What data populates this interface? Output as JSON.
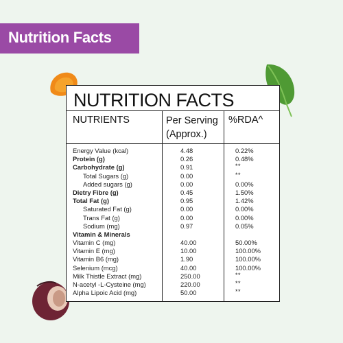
{
  "banner": {
    "title": "Nutrition Facts"
  },
  "panel": {
    "title": "NUTRITION FACTS",
    "headers": {
      "nutrients": "NUTRIENTS",
      "per_serving": "Per Serving (Approx.)",
      "rda": "%RDA^"
    }
  },
  "rows": [
    {
      "name": "Energy Value (kcal)",
      "serving": "4.48",
      "rda": "0.22%",
      "bold": false,
      "indent": false
    },
    {
      "name": "Protein (g)",
      "serving": "0.26",
      "rda": "0.48%",
      "bold": true,
      "indent": false
    },
    {
      "name": "Carbohydrate (g)",
      "serving": "0.91",
      "rda": "**",
      "bold": true,
      "indent": false
    },
    {
      "name": "Total Sugars (g)",
      "serving": "0.00",
      "rda": "**",
      "bold": false,
      "indent": true
    },
    {
      "name": "Added sugars (g)",
      "serving": "0.00",
      "rda": "0.00%",
      "bold": false,
      "indent": true
    },
    {
      "name": "Dietry Fibre (g)",
      "serving": "0.45",
      "rda": "1.50%",
      "bold": true,
      "indent": false
    },
    {
      "name": "Total Fat (g)",
      "serving": "0.95",
      "rda": "1.42%",
      "bold": true,
      "indent": false
    },
    {
      "name": "Saturated Fat (g)",
      "serving": "0.00",
      "rda": "0.00%",
      "bold": false,
      "indent": true
    },
    {
      "name": "Trans Fat (g)",
      "serving": "0.00",
      "rda": "0.00%",
      "bold": false,
      "indent": true
    },
    {
      "name": "Sodium (mg)",
      "serving": "0.97",
      "rda": "0.05%",
      "bold": false,
      "indent": true
    },
    {
      "name": "Vitamin & Minerals",
      "serving": "",
      "rda": "",
      "bold": true,
      "indent": false
    },
    {
      "name": "Vitamin C (mg)",
      "serving": "40.00",
      "rda": "50.00%",
      "bold": false,
      "indent": false
    },
    {
      "name": "Vitamin E (mg)",
      "serving": "10.00",
      "rda": "100.00%",
      "bold": false,
      "indent": false
    },
    {
      "name": "Vitamin B6 (mg)",
      "serving": "1.90",
      "rda": "100.00%",
      "bold": false,
      "indent": false
    },
    {
      "name": "Selenium (mcg)",
      "serving": "40.00",
      "rda": "100.00%",
      "bold": false,
      "indent": false
    },
    {
      "name": "Milk Thistle Extract (mg)",
      "serving": "250.00",
      "rda": "**",
      "bold": false,
      "indent": false
    },
    {
      "name": "N-acetyl -L-Cysteine (mg)",
      "serving": "220.00",
      "rda": "**",
      "bold": false,
      "indent": false
    },
    {
      "name": "Alpha Lipoic Acid (mg)",
      "serving": "50.00",
      "rda": "**",
      "bold": false,
      "indent": false
    }
  ]
}
